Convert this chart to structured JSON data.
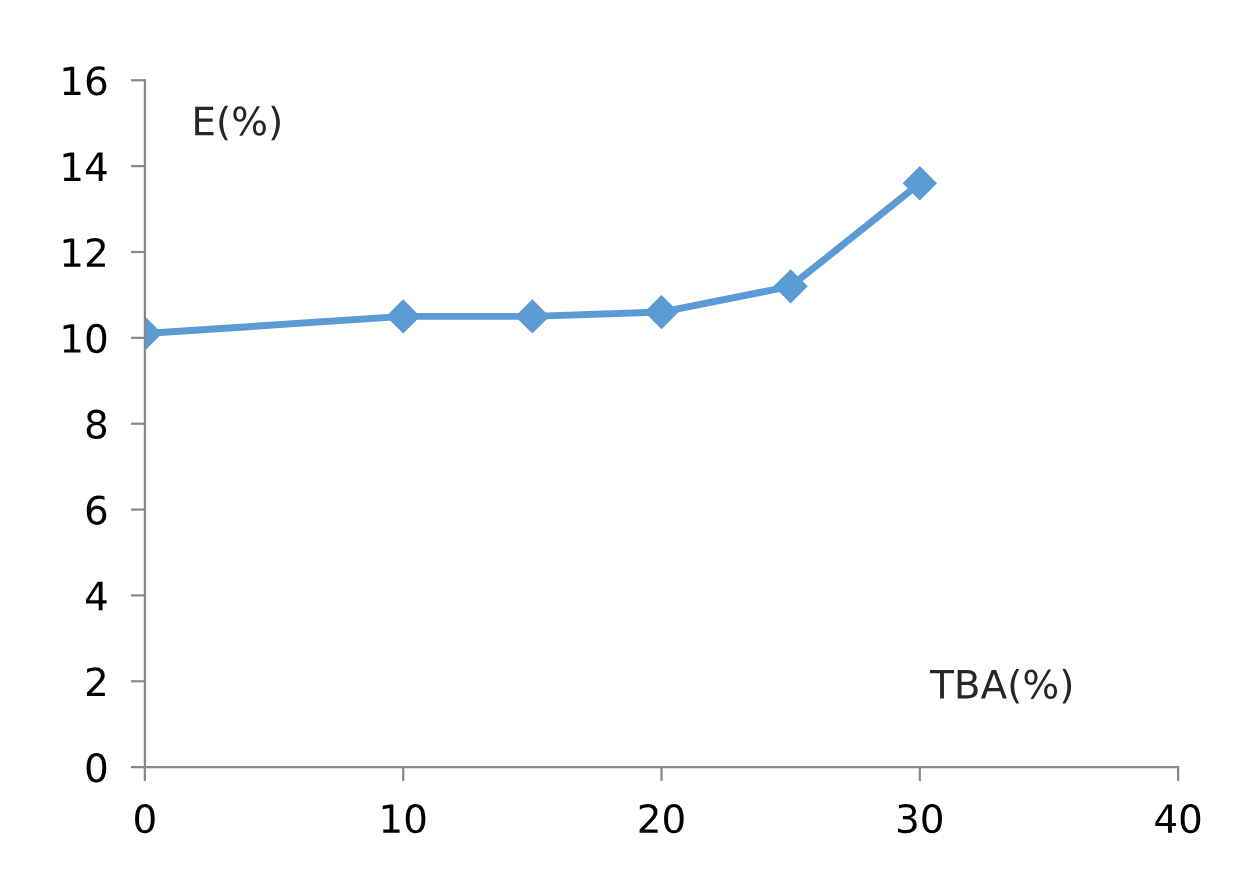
{
  "chart_data": {
    "type": "line",
    "xlabel": "TBA(%)",
    "ylabel": "E(%)",
    "x": [
      0,
      10,
      15,
      20,
      25,
      30
    ],
    "series": [
      {
        "color": "#5b9bd5",
        "values": [
          10.1,
          10.5,
          10.5,
          10.6,
          11.2,
          13.6
        ]
      }
    ],
    "xlim": [
      0,
      40
    ],
    "xticks": [
      0,
      10,
      20,
      30,
      40
    ],
    "ylim": [
      0,
      16
    ],
    "yticks": [
      0,
      2,
      4,
      6,
      8,
      10,
      12,
      14,
      16
    ],
    "grid": false,
    "legend": false,
    "marker": "diamond",
    "line_style": "solid"
  }
}
